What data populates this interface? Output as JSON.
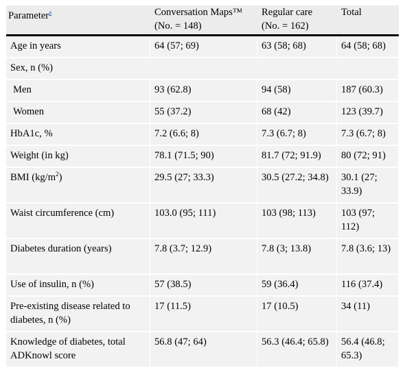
{
  "table": {
    "headers": {
      "parameter": "Parameter",
      "parameter_note": "a",
      "col_cm": "Conversation Maps™ (No. = 148)",
      "col_rc": "Regular care (No. = 162)",
      "col_total": "Total"
    },
    "rows": [
      {
        "label": "Age in years",
        "cm": "64 (57; 69)",
        "rc": "63 (58; 68)",
        "total": "64 (58; 68)"
      },
      {
        "label": "Sex, n (%)",
        "cm": "",
        "rc": "",
        "total": ""
      },
      {
        "label": "Men",
        "cm": "93 (62.8)",
        "rc": "94 (58)",
        "total": "187 (60.3)"
      },
      {
        "label": "Women",
        "cm": "55 (37.2)",
        "rc": "68 (42)",
        "total": "123 (39.7)"
      },
      {
        "label": "HbA1c, %",
        "cm": "7.2 (6.6; 8)",
        "rc": "7.3 (6.7; 8)",
        "total": "7.3 (6.7; 8)"
      },
      {
        "label": "Weight (in kg)",
        "cm": "78.1 (71.5; 90)",
        "rc": "81.7 (72; 91.9)",
        "total": "80 (72; 91)"
      },
      {
        "label": "BMI (kg/m",
        "label_sup": "2",
        "label_tail": ")",
        "cm": "29.5 (27; 33.3)",
        "rc": "30.5 (27.2; 34.8)",
        "total": "30.1 (27; 33.9)"
      },
      {
        "label": "Waist circumference (cm)",
        "cm": "103.0 (95; 111)",
        "rc": "103 (98; 113)",
        "total": "103 (97; 112)"
      },
      {
        "label": "Diabetes duration (years)",
        "cm": "7.8 (3.7; 12.9)",
        "rc": "7.8 (3; 13.8)",
        "total": "7.8 (3.6; 13)"
      },
      {
        "label": "Use of insulin, n (%)",
        "cm": "57 (38.5)",
        "rc": "59 (36.4)",
        "total": "116 (37.4)"
      },
      {
        "label": "Pre-existing disease related to diabetes, n (%)",
        "cm": "17 (11.5)",
        "rc": "17 (10.5)",
        "total": "34 (11)"
      },
      {
        "label": "Knowledge of diabetes, total ADKnowl score",
        "cm": "56.8 (47; 64)",
        "rc": "56.3 (46.4; 65.8)",
        "total": "56.4 (46.8; 65.3)"
      }
    ]
  }
}
